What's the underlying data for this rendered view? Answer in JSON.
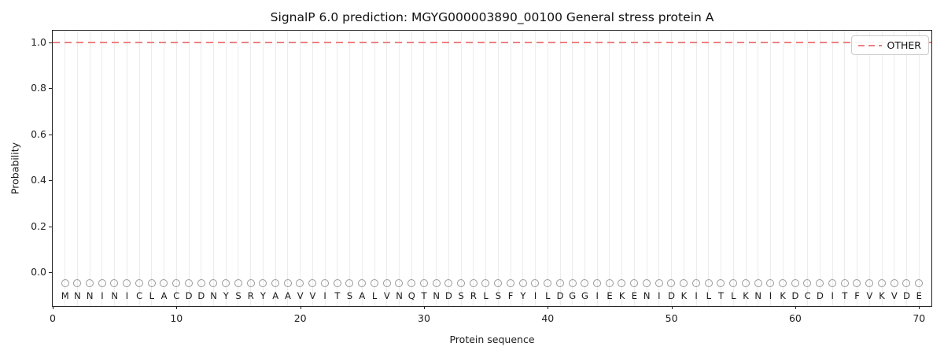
{
  "figure": {
    "title": "SignalP 6.0 prediction: MGYG000003890_00100 General stress protein A",
    "x_axis": {
      "label": "Protein sequence",
      "ticks": [
        0,
        10,
        20,
        30,
        40,
        50,
        60,
        70
      ],
      "range": [
        0,
        71
      ]
    },
    "y_axis": {
      "label": "Probability",
      "ticks": [
        1.0,
        0.8,
        0.6,
        0.4,
        0.2,
        0.0
      ],
      "range": [
        -0.146,
        1.051
      ]
    },
    "legend": {
      "items": [
        {
          "label": "OTHER",
          "line_style": "dashed",
          "color": "#ee8080"
        }
      ]
    },
    "sequence": "MNNINICLACDDNYSRYAAVVITSALVNQTNDSRLSFYILDGGIEKENIDKILTLKNIKDCDITFVKVDE"
  },
  "colors": {
    "dashed_line": "#ee8080",
    "gridline": "#ececec",
    "marker_circle": "#999999",
    "spine": "#222222"
  },
  "chart_data": {
    "type": "line",
    "title": "SignalP 6.0 prediction: MGYG000003890_00100 General stress protein A",
    "xlabel": "Protein sequence",
    "ylabel": "Probability",
    "xlim": [
      0,
      71
    ],
    "ylim": [
      -0.15,
      1.05
    ],
    "grid": "vertical-per-residue",
    "legend_position": "upper right",
    "x": [
      1,
      2,
      3,
      4,
      5,
      6,
      7,
      8,
      9,
      10,
      11,
      12,
      13,
      14,
      15,
      16,
      17,
      18,
      19,
      20,
      21,
      22,
      23,
      24,
      25,
      26,
      27,
      28,
      29,
      30,
      31,
      32,
      33,
      34,
      35,
      36,
      37,
      38,
      39,
      40,
      41,
      42,
      43,
      44,
      45,
      46,
      47,
      48,
      49,
      50,
      51,
      52,
      53,
      54,
      55,
      56,
      57,
      58,
      59,
      60,
      61,
      62,
      63,
      64,
      65,
      66,
      67,
      68,
      69,
      70
    ],
    "series": [
      {
        "name": "OTHER",
        "style": "dashed",
        "color": "#ee8080",
        "values": [
          1.0,
          1.0,
          1.0,
          1.0,
          1.0,
          1.0,
          1.0,
          1.0,
          1.0,
          1.0,
          1.0,
          1.0,
          1.0,
          1.0,
          1.0,
          1.0,
          1.0,
          1.0,
          1.0,
          1.0,
          1.0,
          1.0,
          1.0,
          1.0,
          1.0,
          1.0,
          1.0,
          1.0,
          1.0,
          1.0,
          1.0,
          1.0,
          1.0,
          1.0,
          1.0,
          1.0,
          1.0,
          1.0,
          1.0,
          1.0,
          1.0,
          1.0,
          1.0,
          1.0,
          1.0,
          1.0,
          1.0,
          1.0,
          1.0,
          1.0,
          1.0,
          1.0,
          1.0,
          1.0,
          1.0,
          1.0,
          1.0,
          1.0,
          1.0,
          1.0,
          1.0,
          1.0,
          1.0,
          1.0,
          1.0,
          1.0,
          1.0,
          1.0,
          1.0,
          1.0
        ]
      }
    ],
    "residue_markers": {
      "marker": "open-circle",
      "y": -0.048,
      "letters_y": -0.1,
      "sequence": "MNNINICLACDDNYSRYAAVVITSALVNQTNDSRLSFYILDGGIEKENIDKILTLKNIKDCDITFVKVDE"
    }
  }
}
